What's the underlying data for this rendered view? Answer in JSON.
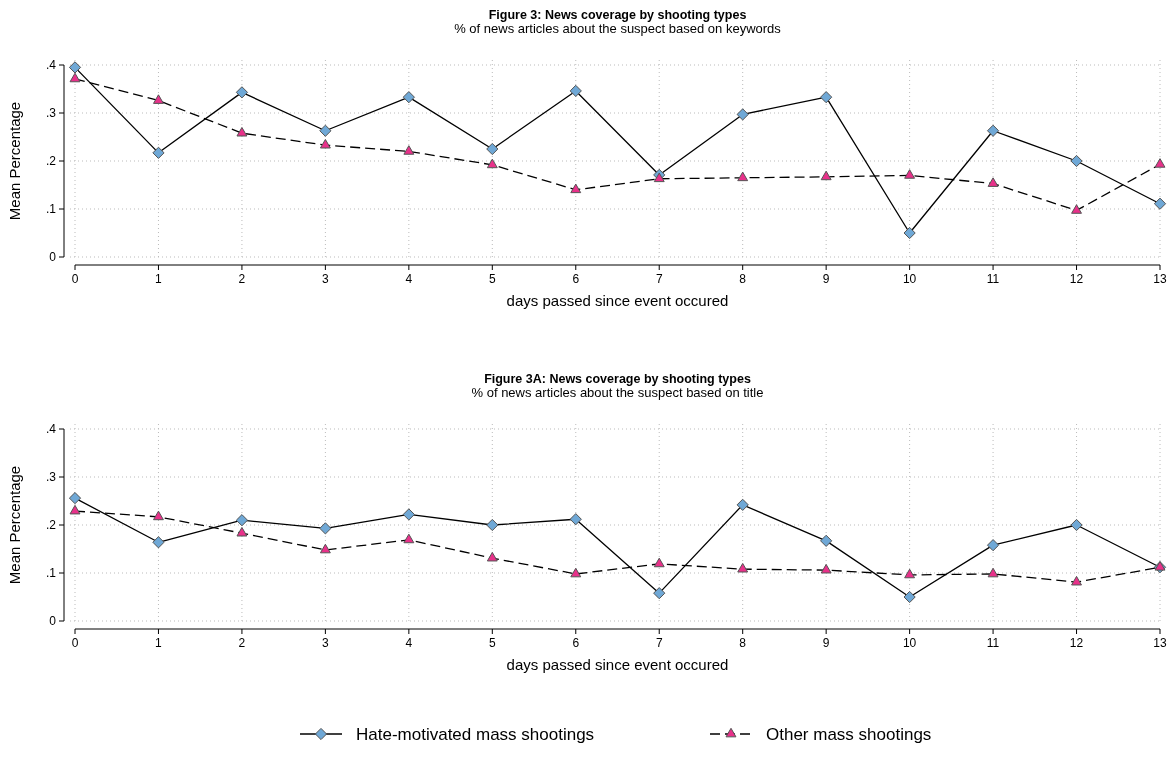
{
  "chart_data": [
    {
      "type": "line",
      "title": "Figure 3: News coverage by shooting types",
      "subtitle": "% of news articles about the suspect based on keywords",
      "xlabel": "days passed since event occured",
      "ylabel": "Mean Percentage",
      "x": [
        0,
        1,
        2,
        3,
        4,
        5,
        6,
        7,
        8,
        9,
        10,
        11,
        12,
        13
      ],
      "xlim": [
        0,
        13
      ],
      "xticks": [
        0,
        1,
        2,
        3,
        4,
        5,
        6,
        7,
        8,
        9,
        10,
        11,
        12,
        13
      ],
      "ylim": [
        0,
        0.4
      ],
      "yticks": [
        0,
        {
          "value": 0.1,
          "label": ".1"
        },
        {
          "value": 0.2,
          "label": ".2"
        },
        {
          "value": 0.3,
          "label": ".3"
        },
        {
          "value": 0.4,
          "label": ".4"
        }
      ],
      "grid": true,
      "legend": "bottom",
      "series": [
        {
          "name": "Hate-motivated mass shootings",
          "color": "#6fa8d6",
          "marker": "diamond",
          "line_style": "solid",
          "values": [
            0.395,
            0.217,
            0.343,
            0.263,
            0.333,
            0.225,
            0.346,
            0.171,
            0.297,
            0.333,
            0.05,
            0.263,
            0.2,
            0.111
          ]
        },
        {
          "name": "Other mass shootings",
          "color": "#e8318a",
          "marker": "triangle",
          "line_style": "dashed",
          "values": [
            0.371,
            0.326,
            0.258,
            0.233,
            0.22,
            0.192,
            0.14,
            0.163,
            0.165,
            0.167,
            0.17,
            0.153,
            0.097,
            0.193
          ]
        }
      ]
    },
    {
      "type": "line",
      "title": "Figure 3A: News coverage by shooting types",
      "subtitle": "% of news articles about the suspect based on title",
      "xlabel": "days passed since event occured",
      "ylabel": "Mean Percentage",
      "x": [
        0,
        1,
        2,
        3,
        4,
        5,
        6,
        7,
        8,
        9,
        10,
        11,
        12,
        13
      ],
      "xlim": [
        0,
        13
      ],
      "xticks": [
        0,
        1,
        2,
        3,
        4,
        5,
        6,
        7,
        8,
        9,
        10,
        11,
        12,
        13
      ],
      "ylim": [
        0,
        0.4
      ],
      "yticks": [
        0,
        {
          "value": 0.1,
          "label": ".1"
        },
        {
          "value": 0.2,
          "label": ".2"
        },
        {
          "value": 0.3,
          "label": ".3"
        },
        {
          "value": 0.4,
          "label": ".4"
        }
      ],
      "grid": true,
      "series": [
        {
          "color": "#6fa8d6",
          "marker": "diamond",
          "line_style": "solid",
          "values": [
            0.256,
            0.164,
            0.21,
            0.193,
            0.222,
            0.2,
            0.212,
            0.058,
            0.242,
            0.167,
            0.05,
            0.158,
            0.2,
            0.112
          ]
        },
        {
          "color": "#e8318a",
          "marker": "triangle",
          "line_style": "dashed",
          "values": [
            0.229,
            0.217,
            0.183,
            0.148,
            0.169,
            0.131,
            0.098,
            0.119,
            0.108,
            0.106,
            0.096,
            0.098,
            0.081,
            0.112
          ]
        }
      ]
    }
  ]
}
